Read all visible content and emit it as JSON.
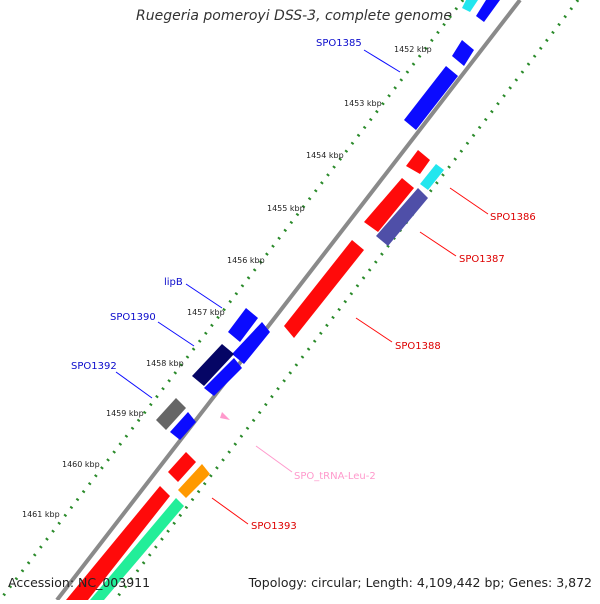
{
  "title": "Ruegeria pomeroyi DSS-3, complete genome",
  "accession": "Accession: NC_003911",
  "summary": "Topology: circular; Length: 4,109,442 bp; Genes: 3,872",
  "ticks": [
    "1452 kbp",
    "1453 kbp",
    "1454 kbp",
    "1455 kbp",
    "1456 kbp",
    "1457 kbp",
    "1458 kbp",
    "1459 kbp",
    "1460 kbp",
    "1461 kbp"
  ],
  "gene_labels": {
    "spo1385": "SPO1385",
    "spo1386": "SPO1386",
    "spo1387": "SPO1387",
    "spo1388": "SPO1388",
    "lipb": "lipB",
    "spo1390": "SPO1390",
    "spo1392": "SPO1392",
    "trna": "SPO_tRNA-Leu-2",
    "spo1393": "SPO1393"
  },
  "colors": {
    "forward": "#0b0bff",
    "reverse": "#ff0a0a",
    "navy": "#050565",
    "slate": "#4f4fa8",
    "gray": "#666666",
    "cyan": "#22e6ee",
    "orange": "#ff9900",
    "mint": "#22ee99",
    "backbone": "#888888",
    "dots": "#2a8a2a",
    "trna": "#ff99cc"
  }
}
